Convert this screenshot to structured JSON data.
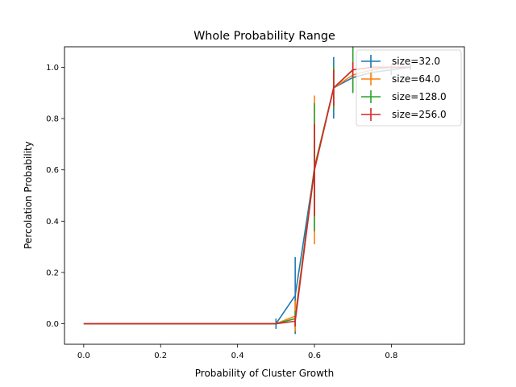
{
  "chart_data": {
    "type": "line",
    "title": "Whole Probability Range",
    "xlabel": "Probability of Cluster Growth",
    "ylabel": "Percolation Probability",
    "xlim": [
      -0.05,
      0.99
    ],
    "ylim": [
      -0.08,
      1.08
    ],
    "xticks": [
      0.0,
      0.2,
      0.4,
      0.6,
      0.8
    ],
    "yticks": [
      0.0,
      0.2,
      0.4,
      0.6,
      0.8,
      1.0
    ],
    "xtick_labels": [
      "0.0",
      "0.2",
      "0.4",
      "0.6",
      "0.8"
    ],
    "ytick_labels": [
      "0.0",
      "0.2",
      "0.4",
      "0.6",
      "0.8",
      "1.0"
    ],
    "grid": false,
    "legend": "top-right",
    "series": [
      {
        "name": "size=32.0",
        "color": "#1f77b4",
        "x": [
          0.0,
          0.05,
          0.1,
          0.15,
          0.2,
          0.25,
          0.3,
          0.35,
          0.4,
          0.45,
          0.5,
          0.55,
          0.6,
          0.65,
          0.7,
          0.75,
          0.8,
          0.85
        ],
        "y": [
          0.0,
          0.0,
          0.0,
          0.0,
          0.0,
          0.0,
          0.0,
          0.0,
          0.0,
          0.0,
          0.0,
          0.11,
          0.6,
          0.92,
          0.96,
          0.98,
          0.99,
          1.0
        ],
        "err": [
          0,
          0,
          0,
          0,
          0,
          0,
          0,
          0,
          0,
          0,
          0.02,
          0.15,
          0.12,
          0.12,
          0.06,
          0.03,
          0.02,
          0.01
        ]
      },
      {
        "name": "size=64.0",
        "color": "#ff7f0e",
        "x": [
          0.0,
          0.05,
          0.1,
          0.15,
          0.2,
          0.25,
          0.3,
          0.35,
          0.4,
          0.45,
          0.5,
          0.55,
          0.6,
          0.65,
          0.7,
          0.75,
          0.8,
          0.85
        ],
        "y": [
          0.0,
          0.0,
          0.0,
          0.0,
          0.0,
          0.0,
          0.0,
          0.0,
          0.0,
          0.0,
          0.0,
          0.03,
          0.6,
          0.92,
          0.97,
          0.99,
          1.0,
          1.0
        ],
        "err": [
          0,
          0,
          0,
          0,
          0,
          0,
          0,
          0,
          0,
          0,
          0,
          0.06,
          0.29,
          0.08,
          0.04,
          0.02,
          0.01,
          0.0
        ]
      },
      {
        "name": "size=128.0",
        "color": "#2ca02c",
        "x": [
          0.0,
          0.05,
          0.1,
          0.15,
          0.2,
          0.25,
          0.3,
          0.35,
          0.4,
          0.45,
          0.5,
          0.55,
          0.6,
          0.65,
          0.7,
          0.75,
          0.8,
          0.85
        ],
        "y": [
          0.0,
          0.0,
          0.0,
          0.0,
          0.0,
          0.0,
          0.0,
          0.0,
          0.0,
          0.0,
          0.0,
          0.02,
          0.61,
          0.92,
          0.99,
          1.0,
          1.0,
          1.0
        ],
        "err": [
          0,
          0,
          0,
          0,
          0,
          0,
          0,
          0,
          0,
          0,
          0,
          0.03,
          0.25,
          0.085,
          0.09,
          0.0,
          0.0,
          0.0
        ]
      },
      {
        "name": "size=256.0",
        "color": "#d62728",
        "x": [
          0.0,
          0.05,
          0.1,
          0.15,
          0.2,
          0.25,
          0.3,
          0.35,
          0.4,
          0.45,
          0.5,
          0.55,
          0.6,
          0.65,
          0.7,
          0.75,
          0.8,
          0.85
        ],
        "y": [
          0.0,
          0.0,
          0.0,
          0.0,
          0.0,
          0.0,
          0.0,
          0.0,
          0.0,
          0.0,
          0.0,
          0.01,
          0.6,
          0.92,
          0.99,
          1.0,
          1.0,
          1.0
        ],
        "err": [
          0,
          0,
          0,
          0,
          0,
          0,
          0,
          0,
          0,
          0,
          0,
          0.02,
          0.18,
          0.07,
          0.03,
          0.0,
          0.0,
          0.0
        ]
      }
    ]
  }
}
